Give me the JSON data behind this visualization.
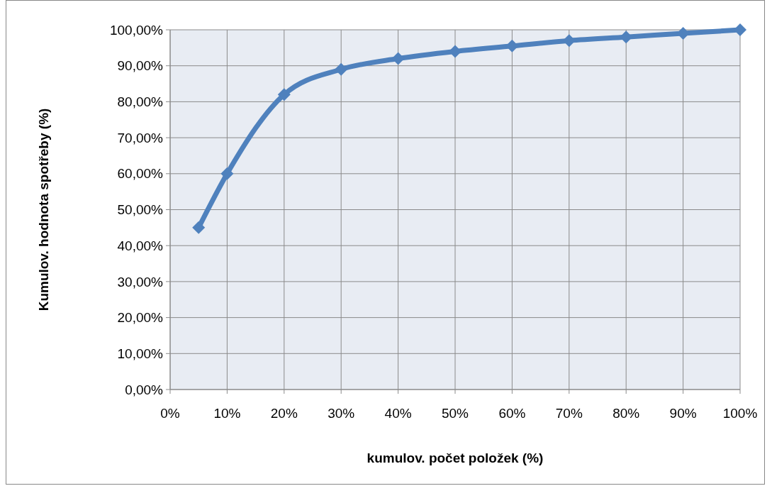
{
  "chart_data": {
    "type": "line",
    "xlabel": "kumulov. počet položek (%)",
    "ylabel": "Kumulov. hodnota spotřeby (%)",
    "x": [
      5,
      10,
      20,
      30,
      40,
      50,
      60,
      70,
      80,
      90,
      100
    ],
    "series": [
      {
        "color": "#4f81bd",
        "values": [
          45,
          60,
          82,
          89,
          92,
          94,
          95.5,
          97,
          98,
          99,
          100
        ]
      }
    ],
    "xlim": [
      0,
      100
    ],
    "ylim": [
      0,
      100
    ],
    "xticks": [
      {
        "value": 0,
        "label": "0%"
      },
      {
        "value": 10,
        "label": "10%"
      },
      {
        "value": 20,
        "label": "20%"
      },
      {
        "value": 30,
        "label": "30%"
      },
      {
        "value": 40,
        "label": "40%"
      },
      {
        "value": 50,
        "label": "50%"
      },
      {
        "value": 60,
        "label": "60%"
      },
      {
        "value": 70,
        "label": "70%"
      },
      {
        "value": 80,
        "label": "80%"
      },
      {
        "value": 90,
        "label": "90%"
      },
      {
        "value": 100,
        "label": "100%"
      }
    ],
    "yticks": [
      {
        "value": 0,
        "label": "0,00%"
      },
      {
        "value": 10,
        "label": "10,00%"
      },
      {
        "value": 20,
        "label": "20,00%"
      },
      {
        "value": 30,
        "label": "30,00%"
      },
      {
        "value": 40,
        "label": "40,00%"
      },
      {
        "value": 50,
        "label": "50,00%"
      },
      {
        "value": 60,
        "label": "60,00%"
      },
      {
        "value": 70,
        "label": "70,00%"
      },
      {
        "value": 80,
        "label": "80,00%"
      },
      {
        "value": 90,
        "label": "90,00%"
      },
      {
        "value": 100,
        "label": "100,00%"
      }
    ],
    "grid": true,
    "marker": "diamond",
    "line_style": "solid"
  }
}
